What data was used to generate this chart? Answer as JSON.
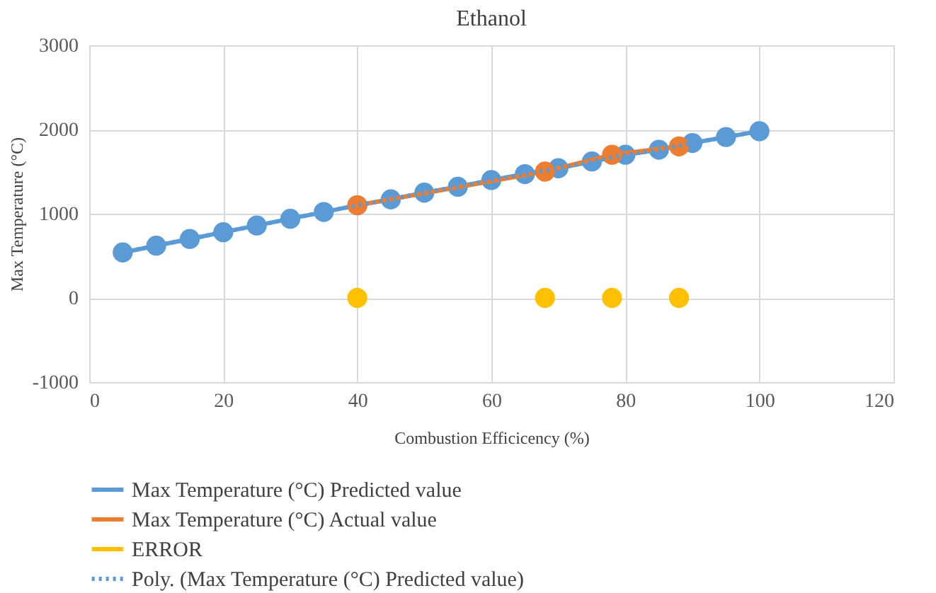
{
  "chart_data": {
    "type": "line",
    "title": "Ethanol",
    "xlabel": "Combustion Efficicency (%)",
    "ylabel": "Max Temperature  (°C)",
    "xlim": [
      0,
      120
    ],
    "xticks": [
      0,
      20,
      40,
      60,
      80,
      100,
      120
    ],
    "ylim": [
      -1000,
      3000
    ],
    "yticks": [
      {
        "value": -1000,
        "label": "-1000"
      },
      0,
      {
        "value": 1000,
        "label": "1000"
      },
      {
        "value": 2000,
        "label": "2000"
      },
      {
        "value": 3000,
        "label": "3000"
      }
    ],
    "grid": true,
    "legend": "bottom",
    "marker": "circle",
    "series": [
      {
        "name": "Max Temperature (°C) Predicted value",
        "color": "#5b9bd5",
        "x": [
          5,
          10,
          15,
          20,
          25,
          30,
          35,
          40,
          45,
          50,
          55,
          60,
          65,
          70,
          75,
          80,
          85,
          90,
          95,
          100
        ],
        "values": [
          540,
          620,
          700,
          780,
          860,
          940,
          1020,
          1100,
          1170,
          1250,
          1320,
          1400,
          1470,
          1540,
          1620,
          1700,
          1760,
          1840,
          1910,
          1980
        ]
      },
      {
        "name": "Max Temperature (°C) Actual value",
        "color": "#ed7d31",
        "x": [
          40,
          68,
          78,
          88
        ],
        "values": [
          1100,
          1500,
          1700,
          1800
        ]
      },
      {
        "name": "ERROR",
        "color": "#ffc000",
        "type": "scatter",
        "marker": "circle",
        "x": [
          40,
          68,
          78,
          88
        ],
        "values": [
          0,
          0,
          0,
          0
        ]
      },
      {
        "name": "Poly. (Max Temperature (°C) Predicted value)",
        "color": "#5b9bd5",
        "marker": "none",
        "line_style": "dotted",
        "x": [
          5,
          10,
          15,
          20,
          25,
          30,
          35,
          40,
          45,
          50,
          55,
          60,
          65,
          70,
          75,
          80,
          85,
          90,
          95,
          100
        ],
        "values": [
          540,
          620,
          700,
          780,
          860,
          940,
          1020,
          1100,
          1170,
          1250,
          1320,
          1400,
          1470,
          1540,
          1620,
          1700,
          1760,
          1840,
          1910,
          1980
        ]
      }
    ]
  }
}
